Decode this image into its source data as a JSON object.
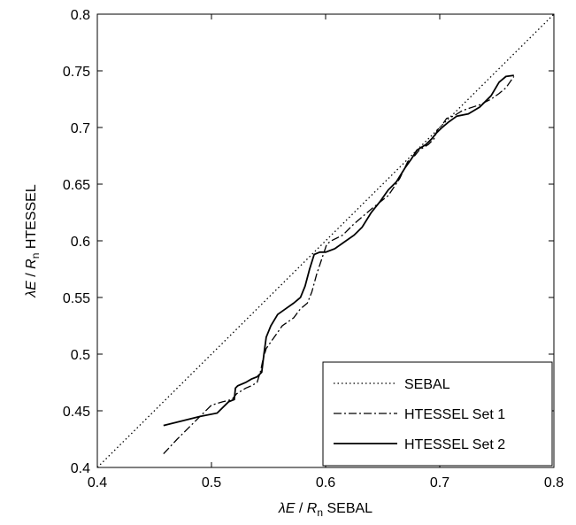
{
  "chart_data": {
    "type": "line",
    "xlabel": {
      "lambda": "λ",
      "e": "E",
      "slash": " / ",
      "r": "R",
      "sub": "n",
      "suffix": " SEBAL"
    },
    "ylabel": {
      "lambda": "λ",
      "e": "E",
      "slash": " / ",
      "r": "R",
      "sub": "n",
      "suffix": " HTESSEL"
    },
    "xlim": [
      0.4,
      0.8
    ],
    "ylim": [
      0.4,
      0.8
    ],
    "xticks": [
      0.4,
      0.5,
      0.6,
      0.7,
      0.8
    ],
    "yticks": [
      0.4,
      0.45,
      0.5,
      0.55,
      0.6,
      0.65,
      0.7,
      0.75,
      0.8
    ],
    "xtick_labels": [
      "0.4",
      "0.5",
      "0.6",
      "0.7",
      "0.8"
    ],
    "ytick_labels": [
      "0.4",
      "0.45",
      "0.5",
      "0.55",
      "0.6",
      "0.65",
      "0.7",
      "0.75",
      "0.8"
    ],
    "grid": false,
    "legend_position": "bottom-right",
    "series": [
      {
        "name": "SEBAL",
        "style": "dotted",
        "color": "#000000",
        "x": [
          0.4,
          0.8
        ],
        "y": [
          0.4,
          0.8
        ]
      },
      {
        "name": "HTESSEL Set 1",
        "style": "dashdot",
        "color": "#000000",
        "x": [
          0.458,
          0.47,
          0.485,
          0.5,
          0.51,
          0.518,
          0.522,
          0.53,
          0.535,
          0.54,
          0.543,
          0.545,
          0.548,
          0.555,
          0.562,
          0.572,
          0.578,
          0.584,
          0.588,
          0.592,
          0.597,
          0.601,
          0.605,
          0.615,
          0.625,
          0.64,
          0.655,
          0.665,
          0.672,
          0.678,
          0.682,
          0.69,
          0.695,
          0.698,
          0.702,
          0.706,
          0.712,
          0.72,
          0.735,
          0.745,
          0.752,
          0.758,
          0.765
        ],
        "y": [
          0.412,
          0.425,
          0.44,
          0.455,
          0.458,
          0.46,
          0.465,
          0.47,
          0.472,
          0.475,
          0.485,
          0.495,
          0.505,
          0.515,
          0.525,
          0.532,
          0.54,
          0.545,
          0.555,
          0.57,
          0.585,
          0.597,
          0.6,
          0.605,
          0.615,
          0.628,
          0.64,
          0.655,
          0.67,
          0.675,
          0.68,
          0.685,
          0.69,
          0.698,
          0.702,
          0.708,
          0.71,
          0.715,
          0.72,
          0.725,
          0.73,
          0.735,
          0.745
        ]
      },
      {
        "name": "HTESSEL Set 2",
        "style": "solid",
        "color": "#000000",
        "x": [
          0.458,
          0.49,
          0.505,
          0.515,
          0.52,
          0.521,
          0.523,
          0.53,
          0.535,
          0.54,
          0.544,
          0.546,
          0.548,
          0.552,
          0.558,
          0.565,
          0.572,
          0.578,
          0.582,
          0.586,
          0.59,
          0.595,
          0.6,
          0.608,
          0.615,
          0.625,
          0.632,
          0.64,
          0.648,
          0.655,
          0.662,
          0.67,
          0.675,
          0.68,
          0.688,
          0.693,
          0.697,
          0.702,
          0.708,
          0.715,
          0.725,
          0.735,
          0.745,
          0.752,
          0.758,
          0.765
        ],
        "y": [
          0.437,
          0.445,
          0.448,
          0.458,
          0.46,
          0.47,
          0.472,
          0.475,
          0.478,
          0.48,
          0.484,
          0.5,
          0.515,
          0.525,
          0.535,
          0.54,
          0.545,
          0.55,
          0.56,
          0.575,
          0.588,
          0.59,
          0.59,
          0.593,
          0.598,
          0.605,
          0.612,
          0.625,
          0.635,
          0.645,
          0.652,
          0.665,
          0.672,
          0.68,
          0.685,
          0.69,
          0.695,
          0.7,
          0.705,
          0.71,
          0.712,
          0.718,
          0.728,
          0.74,
          0.745,
          0.746
        ]
      }
    ]
  }
}
